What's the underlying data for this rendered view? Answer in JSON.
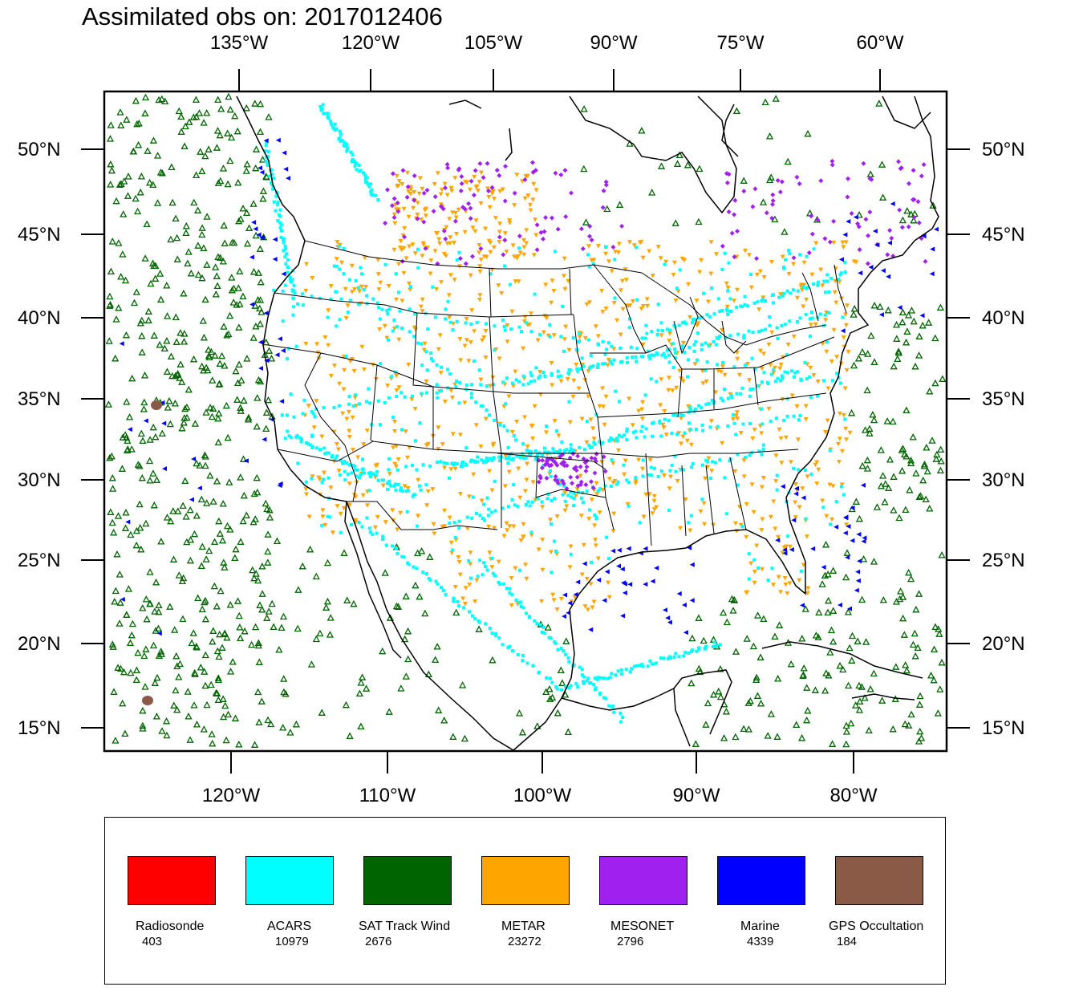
{
  "title": "Assimilated obs on: 2017012406",
  "top_lon_labels": [
    "135°W",
    "120°W",
    "105°W",
    "90°W",
    "75°W",
    "60°W"
  ],
  "bottom_lon_labels": [
    "120°W",
    "110°W",
    "100°W",
    "90°W",
    "80°W"
  ],
  "lat_labels": [
    "50°N",
    "45°N",
    "40°N",
    "35°N",
    "30°N",
    "25°N",
    "20°N",
    "15°N"
  ],
  "colors": {
    "radiosonde": "#ff0000",
    "acars": "#00ffff",
    "sat_track_wind": "#006400",
    "metar": "#ffa500",
    "mesonet": "#a020f0",
    "marine": "#0000ff",
    "gps": "#8b5a46"
  },
  "legend": [
    {
      "name": "Radiosonde",
      "count": "403",
      "color": "#ff0000"
    },
    {
      "name": "ACARS",
      "count": "10979",
      "color": "#00ffff"
    },
    {
      "name": "SAT Track Wind",
      "count": "2676",
      "color": "#006400"
    },
    {
      "name": "METAR",
      "count": "23272",
      "color": "#ffa500"
    },
    {
      "name": "MESONET",
      "count": "2796",
      "color": "#a020f0"
    },
    {
      "name": "Marine",
      "count": "4339",
      "color": "#0000ff"
    },
    {
      "name": "GPS Occultation",
      "count": "184",
      "color": "#8b5a46"
    }
  ]
}
